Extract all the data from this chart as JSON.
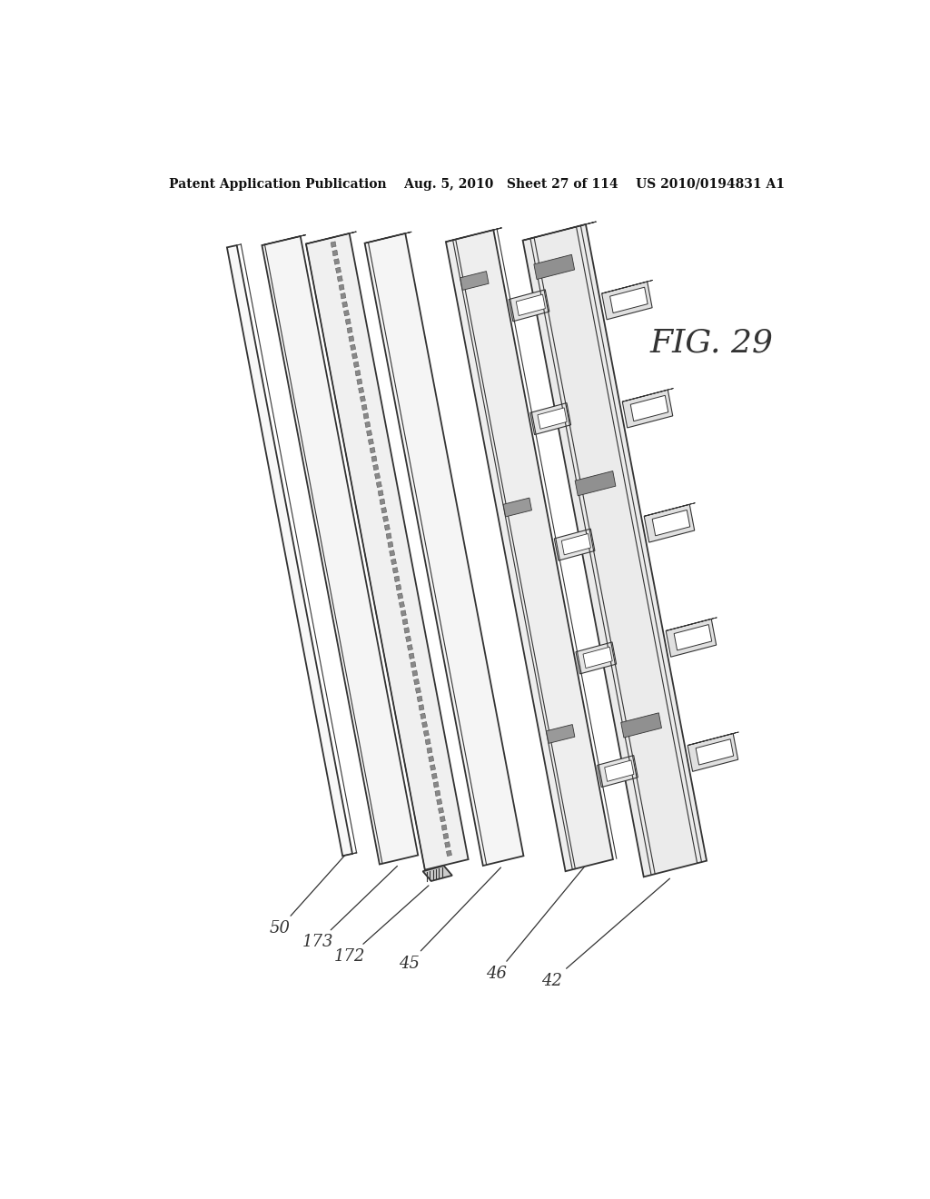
{
  "bg_color": "#ffffff",
  "line_color": "#333333",
  "header_text": "Patent Application Publication    Aug. 5, 2010   Sheet 27 of 114    US 2010/0194831 A1",
  "fig_label": "FIG. 29",
  "label_fontsize": 13,
  "fig_label_fontsize": 26,
  "header_fontsize": 10
}
